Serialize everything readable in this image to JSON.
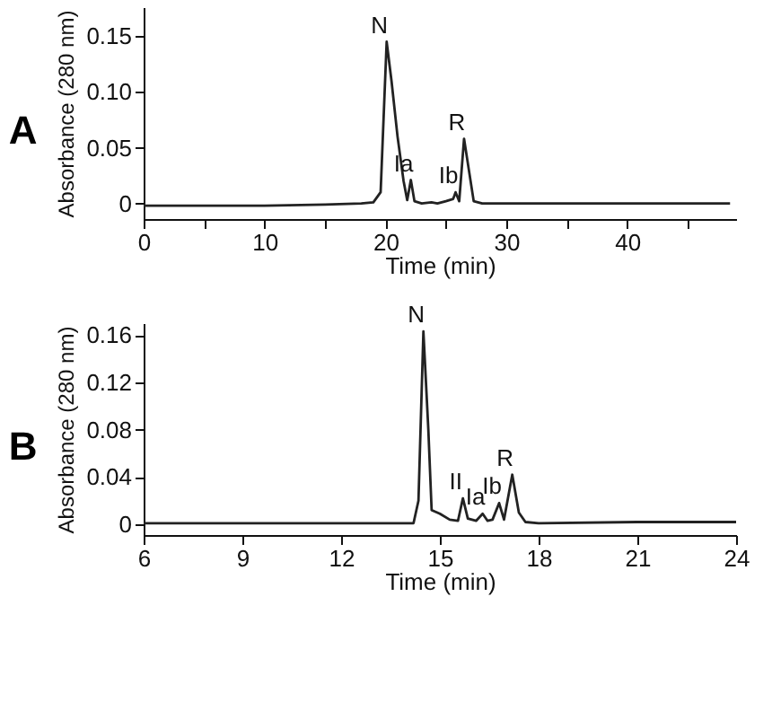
{
  "chart_data": [
    {
      "type": "line",
      "title": "A",
      "xlabel": "Time (min)",
      "ylabel": "Absorbance (280 nm)",
      "grid": false,
      "marker": "none",
      "line_style": "solid",
      "xlim": [
        0,
        49
      ],
      "ylim": [
        -0.014,
        0.176
      ],
      "xticks": [
        0,
        {
          "value": 5,
          "label": null
        },
        10,
        {
          "value": 15,
          "label": null
        },
        20,
        {
          "value": 25,
          "label": null
        },
        30,
        {
          "value": 35,
          "label": null
        },
        40,
        {
          "value": 45,
          "label": null
        }
      ],
      "yticks": [
        0,
        0.05,
        {
          "value": 0.1,
          "label": "0.10"
        },
        0.15
      ],
      "series": [
        {
          "color": "#222222",
          "x": [
            0,
            5,
            10,
            15,
            18,
            19,
            19.6,
            20.1,
            20.5,
            21,
            21.5,
            21.8,
            22.1,
            22.4,
            23,
            23.8,
            24.3,
            25,
            25.6,
            25.8,
            26.1,
            26.5,
            26.9,
            27.3,
            28,
            30,
            35,
            40,
            45,
            48.5
          ],
          "values": [
            -0.002,
            -0.002,
            -0.002,
            -0.001,
            0.0,
            0.001,
            0.01,
            0.145,
            0.11,
            0.06,
            0.02,
            0.003,
            0.021,
            0.002,
            0.0,
            0.001,
            0.0,
            0.002,
            0.004,
            0.01,
            0.002,
            0.058,
            0.03,
            0.002,
            0.0,
            0.0,
            0.0,
            0.0,
            0.0,
            0.0
          ]
        }
      ],
      "annotations": [
        {
          "text": "N",
          "x": 20.1,
          "y": 0.145
        },
        {
          "text": "Ia",
          "x": 22.1,
          "y": 0.021
        },
        {
          "text": "Ib",
          "x": 25.8,
          "y": 0.01
        },
        {
          "text": "R",
          "x": 26.5,
          "y": 0.058
        }
      ]
    },
    {
      "type": "line",
      "title": "B",
      "xlabel": "Time (min)",
      "ylabel": "Absorbance (280 nm)",
      "grid": false,
      "marker": "none",
      "line_style": "solid",
      "xlim": [
        6,
        24
      ],
      "ylim": [
        -0.009,
        0.17
      ],
      "xticks": [
        6,
        9,
        12,
        15,
        18,
        21,
        24
      ],
      "yticks": [
        0,
        0.04,
        0.08,
        0.12,
        0.16
      ],
      "series": [
        {
          "color": "#222222",
          "x": [
            6,
            9,
            12,
            14.2,
            14.35,
            14.5,
            14.65,
            14.75,
            15,
            15.3,
            15.55,
            15.7,
            15.85,
            16.1,
            16.3,
            16.45,
            16.6,
            16.8,
            16.95,
            17.2,
            17.4,
            17.6,
            18,
            21,
            24
          ],
          "values": [
            0.001,
            0.001,
            0.001,
            0.001,
            0.02,
            0.163,
            0.08,
            0.012,
            0.009,
            0.004,
            0.003,
            0.022,
            0.005,
            0.003,
            0.009,
            0.003,
            0.004,
            0.018,
            0.004,
            0.042,
            0.01,
            0.002,
            0.001,
            0.002,
            0.002
          ]
        }
      ],
      "annotations": [
        {
          "text": "N",
          "x": 14.5,
          "y": 0.163
        },
        {
          "text": "II",
          "x": 15.7,
          "y": 0.022
        },
        {
          "text": "Ia",
          "x": 16.3,
          "y": 0.009
        },
        {
          "text": "Ib",
          "x": 16.8,
          "y": 0.018
        },
        {
          "text": "R",
          "x": 17.2,
          "y": 0.042
        }
      ]
    }
  ]
}
